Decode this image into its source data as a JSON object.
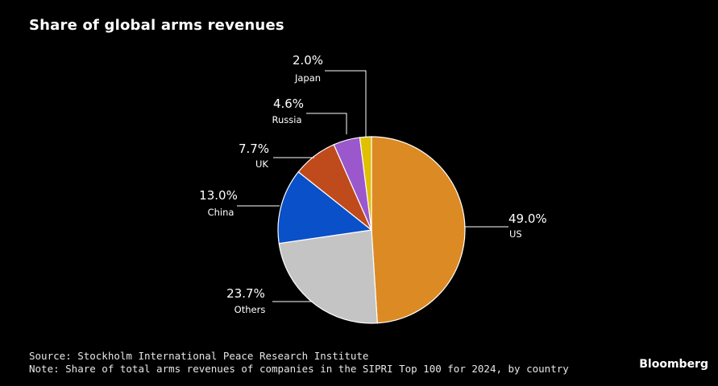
{
  "chart_data": {
    "type": "pie",
    "title": "Share of global arms revenues",
    "categories": [
      "US",
      "Others",
      "China",
      "UK",
      "Russia",
      "Japan"
    ],
    "values": [
      49.0,
      23.7,
      13.0,
      7.7,
      4.6,
      2.0
    ],
    "value_labels": [
      "49.0%",
      "23.7%",
      "13.0%",
      "7.7%",
      "4.6%",
      "2.0%"
    ],
    "colors": [
      "#dc8a24",
      "#c4c4c4",
      "#0a50c8",
      "#bf4a1c",
      "#9b57cc",
      "#e0c000"
    ]
  },
  "footer": {
    "source": "Source: Stockholm International Peace Research Institute",
    "note": "Note: Share of total arms revenues of companies in the SIPRI Top 100 for 2024, by country"
  },
  "brand": "Bloomberg"
}
